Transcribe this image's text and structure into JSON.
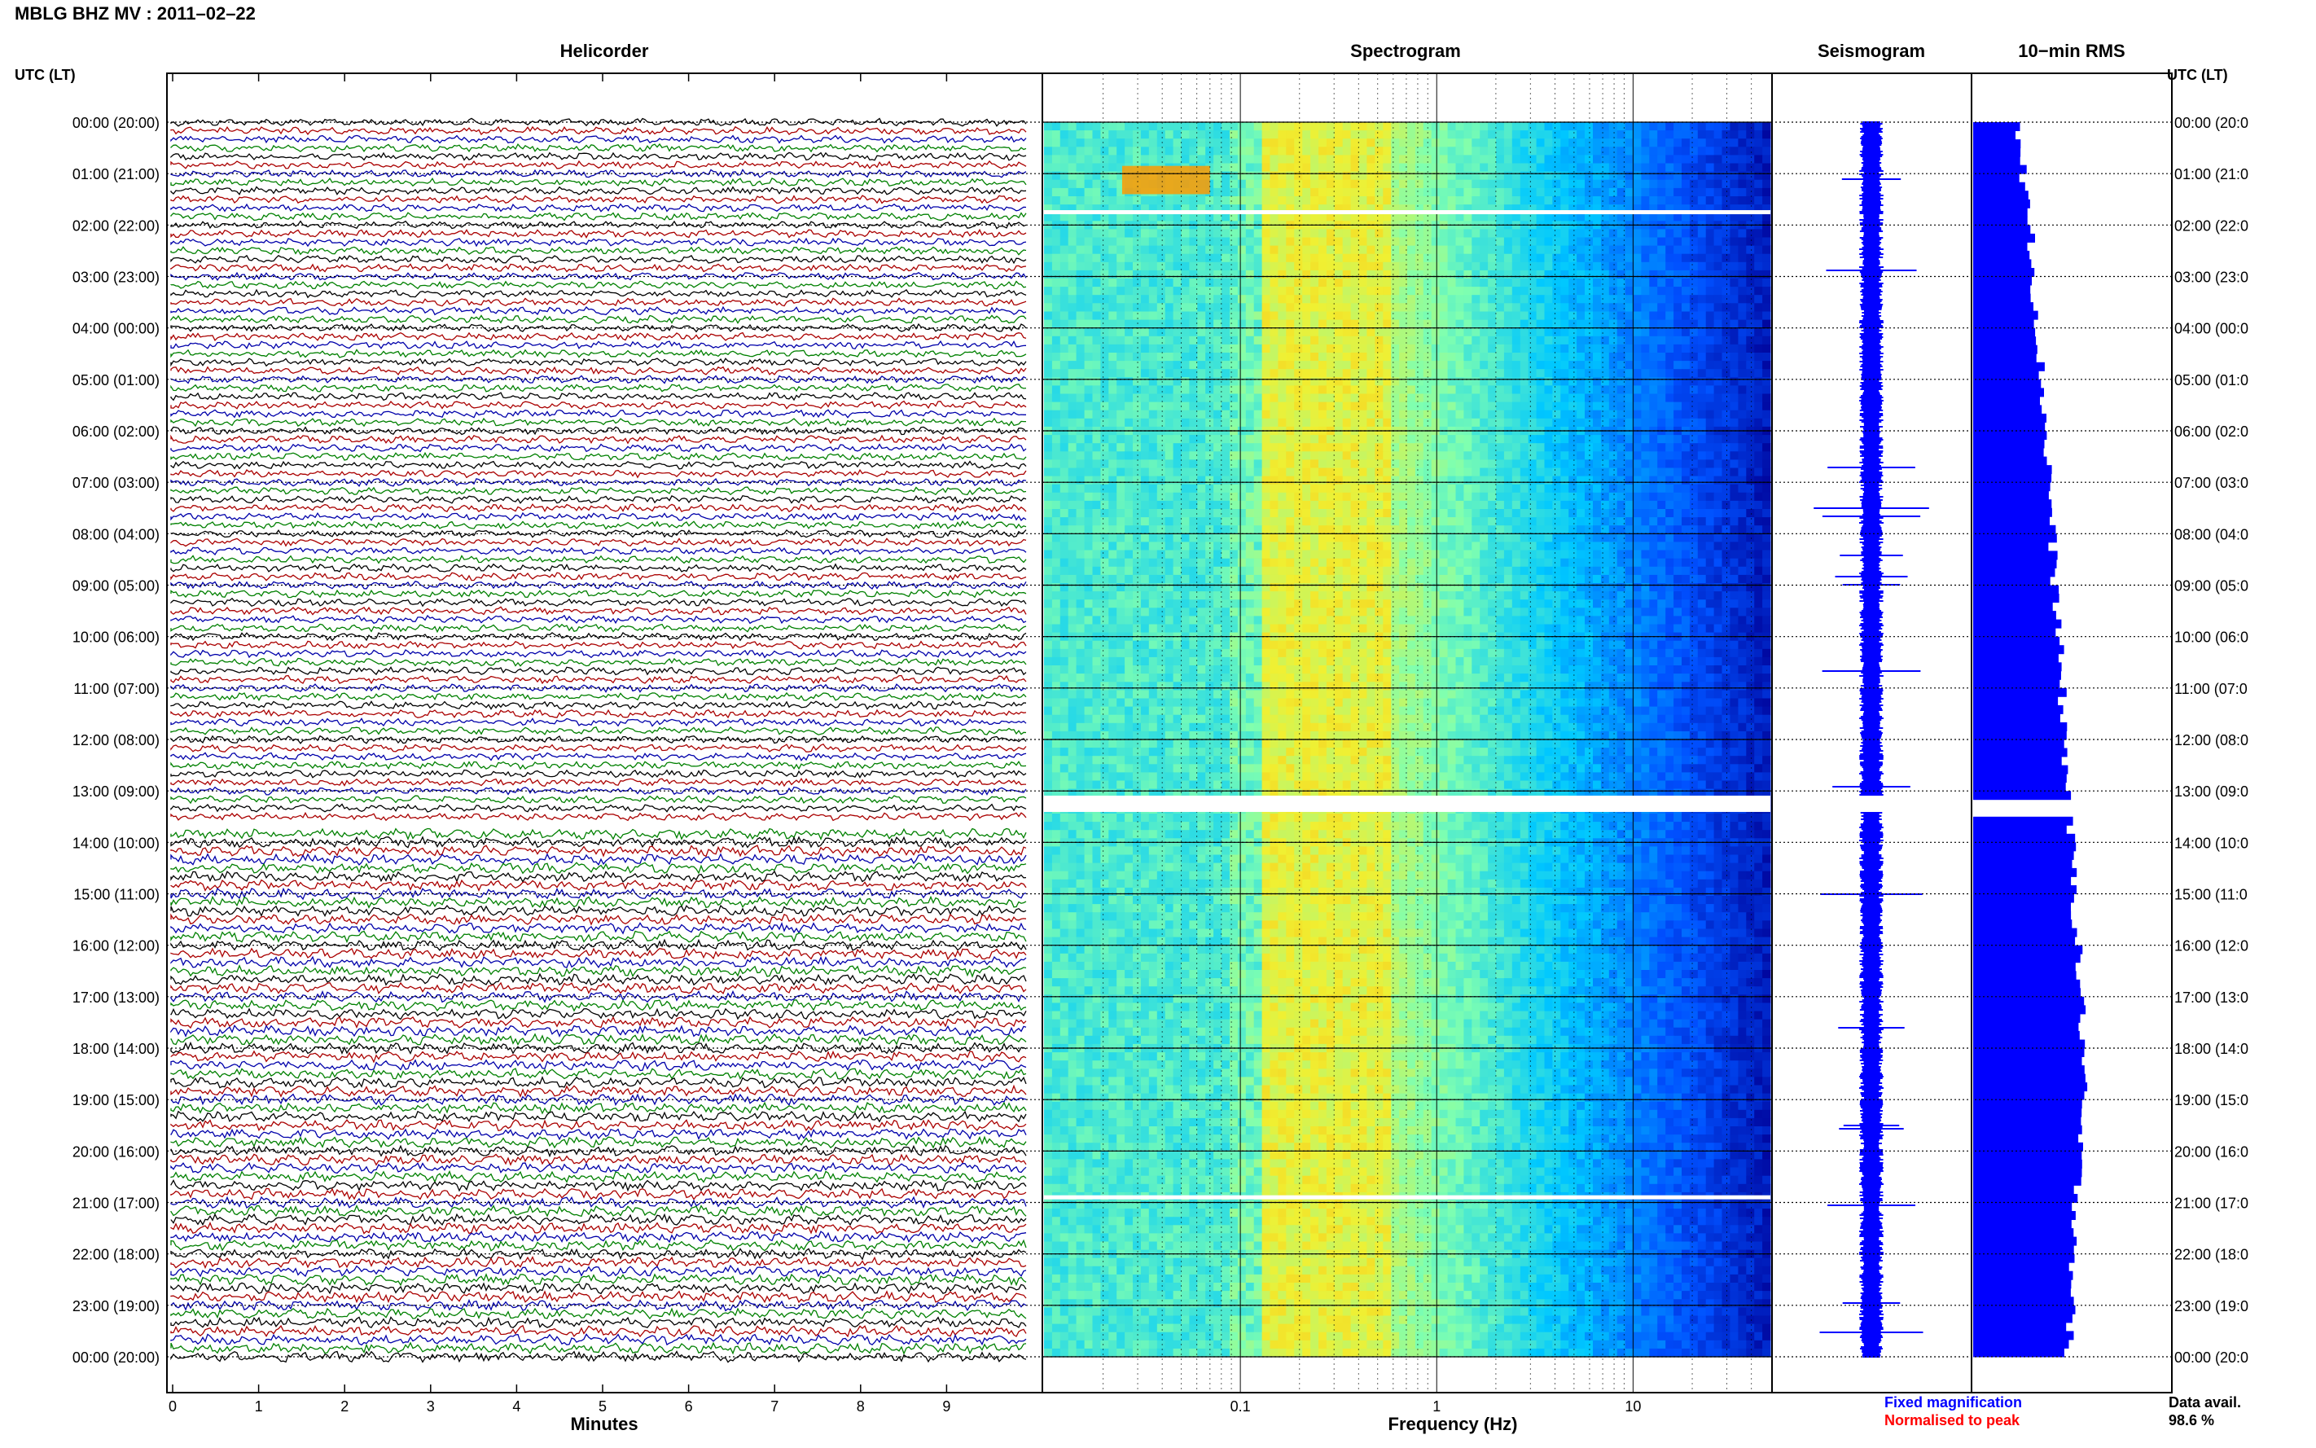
{
  "header": {
    "title": "MBLG BHZ MV : 2011–02–22"
  },
  "axis_label": {
    "left": "UTC (LT)",
    "right": "UTC (LT)"
  },
  "panels": {
    "helicorder": "Helicorder",
    "spectrogram": "Spectrogram",
    "seismogram": "Seismogram",
    "rms": "10−min RMS"
  },
  "hour_labels": [
    "00:00 (20:00)",
    "01:00 (21:00)",
    "02:00 (22:00)",
    "03:00 (23:00)",
    "04:00 (00:00)",
    "05:00 (01:00)",
    "06:00 (02:00)",
    "07:00 (03:00)",
    "08:00 (04:00)",
    "09:00 (05:00)",
    "10:00 (06:00)",
    "11:00 (07:00)",
    "12:00 (08:00)",
    "13:00 (09:00)",
    "14:00 (10:00)",
    "15:00 (11:00)",
    "16:00 (12:00)",
    "17:00 (13:00)",
    "18:00 (14:00)",
    "19:00 (15:00)",
    "20:00 (16:00)",
    "21:00 (17:00)",
    "22:00 (18:00)",
    "23:00 (19:00)",
    "00:00 (20:00)"
  ],
  "right_hour_labels": [
    "00:00 (20:0",
    "01:00 (21:0",
    "02:00 (22:0",
    "03:00 (23:0",
    "04:00 (00:0",
    "05:00 (01:0",
    "06:00 (02:0",
    "07:00 (03:0",
    "08:00 (04:0",
    "09:00 (05:0",
    "10:00 (06:0",
    "11:00 (07:0",
    "12:00 (08:0",
    "13:00 (09:0",
    "14:00 (10:0",
    "15:00 (11:0",
    "16:00 (12:0",
    "17:00 (13:0",
    "18:00 (14:0",
    "19:00 (15:0",
    "20:00 (16:0",
    "21:00 (17:0",
    "22:00 (18:0",
    "23:00 (19:0",
    "00:00 (20:0"
  ],
  "x_axes": {
    "minutes_label": "Minutes",
    "minute_ticks": [
      "0",
      "1",
      "2",
      "3",
      "4",
      "5",
      "6",
      "7",
      "8",
      "9"
    ],
    "frequency_label": "Frequency (Hz)",
    "frequency_ticks": [
      "0.1",
      "1",
      "10"
    ]
  },
  "legend": {
    "fixed": "Fixed magnification",
    "normalised": "Normalised to peak",
    "fixed_color": "#0000ff",
    "normalised_color": "#ff0000"
  },
  "data_availability": {
    "label": "Data avail.",
    "value": "98.6 %"
  },
  "colors": {
    "trace_cycle": [
      "#000000",
      "#aa0000",
      "#0000aa",
      "#008000"
    ],
    "seismogram": "#0000ff",
    "rms": "#0000ff",
    "spectrogram_scale": [
      "#000096",
      "#0050ff",
      "#00c8ff",
      "#7fffb0",
      "#f0f032",
      "#ff9600"
    ]
  },
  "chart_data": [
    {
      "type": "line",
      "title": "Helicorder",
      "xlabel": "Minutes",
      "xlim": [
        0,
        10
      ],
      "ylabel": "UTC (LT)",
      "rows": 144,
      "minutes_per_row": 10,
      "data_gap_row": 82
    },
    {
      "type": "heatmap",
      "title": "Spectrogram",
      "xlabel": "Frequency (Hz)",
      "x_scale": "log",
      "xlim": [
        0.01,
        50
      ],
      "dominant_band_hz": [
        0.13,
        0.6
      ],
      "gaps_hours": [
        1.75,
        13.25,
        20.9
      ]
    },
    {
      "type": "line",
      "title": "Seismogram",
      "magnification": "fixed"
    },
    {
      "type": "bar",
      "title": "10−min RMS",
      "orientation": "horizontal",
      "bar_minutes": 10,
      "relative_values": [
        0.38,
        0.4,
        0.44,
        0.48,
        0.5,
        0.53,
        0.55,
        0.58,
        0.6,
        0.63,
        0.64,
        0.66,
        0.68,
        0.7,
        0.72,
        0.74,
        0.76,
        0.78,
        0.8,
        0.82,
        0.84,
        0.86,
        0.88,
        0.9,
        0.9,
        0.88,
        0.87,
        0.85,
        0.84,
        0.82,
        0.8,
        0.78
      ]
    }
  ]
}
